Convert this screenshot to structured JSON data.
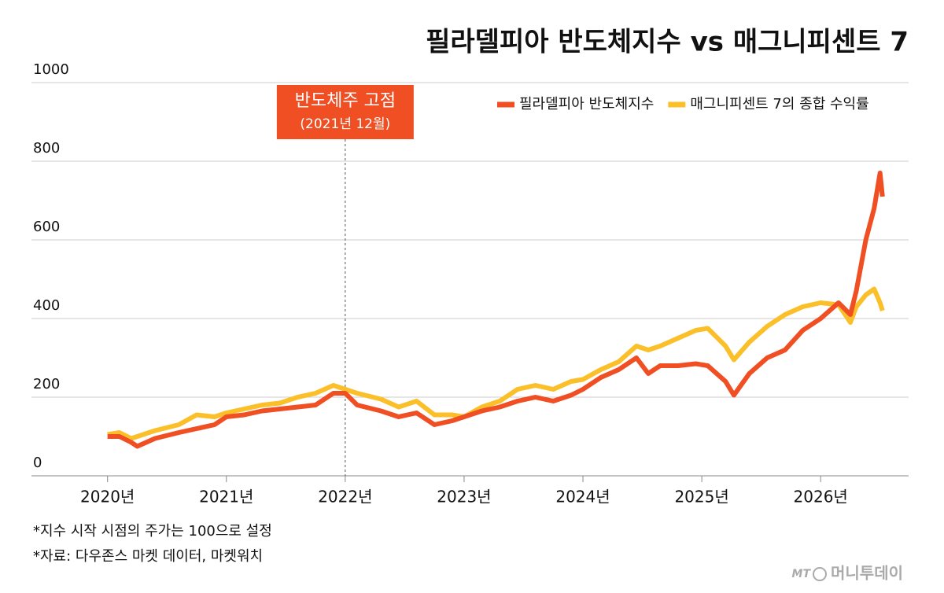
{
  "chart_data": {
    "type": "line",
    "title": "필라델피아 반도체지수 vs 매그니피센트 7",
    "x": [
      2020.0,
      2020.1,
      2020.2,
      2020.25,
      2020.4,
      2020.6,
      2020.75,
      2020.9,
      2021.0,
      2021.15,
      2021.3,
      2021.45,
      2021.6,
      2021.75,
      2021.9,
      2022.0,
      2022.1,
      2022.3,
      2022.45,
      2022.6,
      2022.75,
      2022.9,
      2023.0,
      2023.15,
      2023.3,
      2023.45,
      2023.6,
      2023.75,
      2023.9,
      2024.0,
      2024.15,
      2024.3,
      2024.45,
      2024.55,
      2024.65,
      2024.8,
      2024.95,
      2025.05,
      2025.2,
      2025.27,
      2025.4,
      2025.55,
      2025.7,
      2025.85,
      2026.0,
      2026.15,
      2026.25,
      2026.3,
      2026.38,
      2026.45,
      2026.5,
      2026.52
    ],
    "series": [
      {
        "name": "매그니피센트 7의 종합 수익률",
        "color": "#fbbf2a",
        "values": [
          105,
          110,
          95,
          100,
          115,
          130,
          155,
          150,
          160,
          170,
          180,
          185,
          200,
          210,
          230,
          220,
          210,
          195,
          175,
          190,
          155,
          155,
          150,
          175,
          190,
          220,
          230,
          220,
          240,
          245,
          270,
          290,
          330,
          320,
          330,
          350,
          370,
          375,
          330,
          295,
          340,
          380,
          410,
          430,
          440,
          435,
          390,
          430,
          460,
          475,
          440,
          420
        ]
      },
      {
        "name": "필라델피아 반도체지수",
        "color": "#f04e23",
        "values": [
          100,
          100,
          85,
          75,
          95,
          110,
          120,
          130,
          150,
          155,
          165,
          170,
          175,
          180,
          210,
          210,
          180,
          165,
          150,
          160,
          130,
          140,
          150,
          165,
          175,
          190,
          200,
          190,
          205,
          220,
          250,
          270,
          300,
          260,
          280,
          280,
          285,
          280,
          240,
          205,
          260,
          300,
          320,
          370,
          400,
          440,
          410,
          470,
          600,
          680,
          770,
          710
        ]
      }
    ],
    "xlim": [
      2019.36,
      2026.74
    ],
    "xticks": [
      {
        "value": 2020,
        "label": "2020년"
      },
      {
        "value": 2021,
        "label": "2021년"
      },
      {
        "value": 2022,
        "label": "2022년"
      },
      {
        "value": 2023,
        "label": "2023년"
      },
      {
        "value": 2024,
        "label": "2024년"
      },
      {
        "value": 2025,
        "label": "2025년"
      },
      {
        "value": 2026,
        "label": "2026년"
      }
    ],
    "ylim": [
      0,
      1000
    ],
    "yticks": [
      0,
      200,
      400,
      600,
      800,
      1000
    ],
    "grid": true,
    "annotation": {
      "x": 2022,
      "title": "반도체주 고점",
      "subtitle": "(2021년 12월)"
    },
    "notes": [
      "*지수 시작 시점의 주가는 100으로 설정",
      "*자료: 다우존스 마켓 데이터, 마켓워치"
    ]
  },
  "logo": {
    "mark": "MT",
    "name": "머니투데이"
  }
}
